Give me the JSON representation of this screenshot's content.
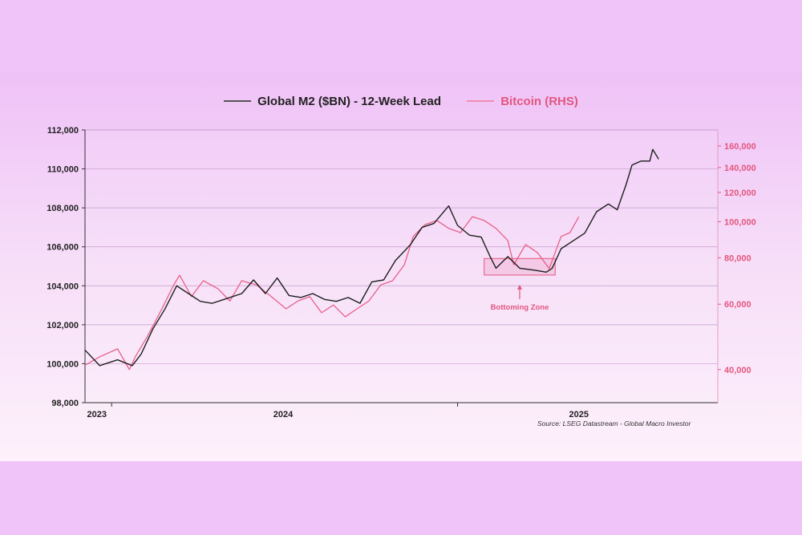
{
  "chart_data": {
    "type": "line",
    "title": "",
    "legend": [
      {
        "name": "Global M2 ($BN) - 12-Week Lead",
        "color": "#2b2b2b"
      },
      {
        "name": "Bitcoin (RHS)",
        "color": "#e2577f"
      }
    ],
    "legend_placement": "top-center",
    "source": "Source: LSEG Datastream - Global Macro Investor",
    "xlim": [
      2023.33,
      2025.47
    ],
    "x_tick_labels": [
      {
        "label": "2023",
        "at": 2023.37
      },
      {
        "label": "2024",
        "at": 2024.0
      },
      {
        "label": "2025",
        "at": 2025.0
      }
    ],
    "x_tick_marks": [
      2023.42,
      2024.59
    ],
    "left_axis": {
      "ylim": [
        98000,
        112000
      ],
      "ticks": [
        "98,000",
        "100,000",
        "102,000",
        "104,000",
        "106,000",
        "108,000",
        "110,000",
        "112,000"
      ],
      "tick_values": [
        98000,
        100000,
        102000,
        104000,
        106000,
        108000,
        110000,
        112000
      ]
    },
    "right_axis": {
      "scale": "log",
      "ticks": [
        "40,000",
        "60,000",
        "80,000",
        "100,000",
        "120,000",
        "140,000",
        "160,000"
      ],
      "tick_values": [
        40000,
        60000,
        80000,
        100000,
        120000,
        140000,
        160000
      ],
      "color": "#e2577f"
    },
    "grid": true,
    "series": [
      {
        "name": "Global M2 ($BN) - 12-Week Lead",
        "axis": "left",
        "x": [
          2023.33,
          2023.38,
          2023.44,
          2023.49,
          2023.52,
          2023.56,
          2023.6,
          2023.64,
          2023.68,
          2023.72,
          2023.76,
          2023.8,
          2023.86,
          2023.9,
          2023.94,
          2023.98,
          2024.02,
          2024.06,
          2024.1,
          2024.14,
          2024.18,
          2024.22,
          2024.26,
          2024.3,
          2024.34,
          2024.38,
          2024.43,
          2024.47,
          2024.51,
          2024.56,
          2024.59,
          2024.63,
          2024.67,
          2024.7,
          2024.72,
          2024.76,
          2024.8,
          2024.85,
          2024.89,
          2024.91,
          2024.94,
          2024.98,
          2025.02,
          2025.06,
          2025.1,
          2025.13,
          2025.16,
          2025.18,
          2025.21,
          2025.24,
          2025.25,
          2025.27
        ],
        "values": [
          100700,
          99900,
          100200,
          99900,
          100500,
          101800,
          102800,
          104000,
          103600,
          103200,
          103100,
          103300,
          103600,
          104300,
          103600,
          104400,
          103500,
          103400,
          103600,
          103300,
          103200,
          103400,
          103100,
          104200,
          104300,
          105300,
          106100,
          107000,
          107200,
          108100,
          107100,
          106600,
          106500,
          105500,
          104900,
          105500,
          104900,
          104800,
          104700,
          104900,
          105900,
          106300,
          106700,
          107800,
          108200,
          107900,
          109200,
          110200,
          110400,
          110400,
          111000,
          110500
        ]
      },
      {
        "name": "Bitcoin (RHS)",
        "axis": "right",
        "x": [
          2023.33,
          2023.38,
          2023.44,
          2023.48,
          2023.5,
          2023.54,
          2023.59,
          2023.63,
          2023.65,
          2023.69,
          2023.73,
          2023.78,
          2023.82,
          2023.86,
          2023.91,
          2023.96,
          2024.01,
          2024.05,
          2024.09,
          2024.13,
          2024.17,
          2024.21,
          2024.25,
          2024.29,
          2024.33,
          2024.37,
          2024.41,
          2024.44,
          2024.48,
          2024.52,
          2024.56,
          2024.6,
          2024.64,
          2024.68,
          2024.72,
          2024.76,
          2024.78,
          2024.82,
          2024.86,
          2024.9,
          2024.94,
          2024.97,
          2025.0
        ],
        "values": [
          41100,
          43300,
          45500,
          40000,
          43300,
          49000,
          58300,
          67600,
          71800,
          62900,
          69400,
          66000,
          61200,
          69400,
          67600,
          62900,
          58300,
          61200,
          62900,
          56900,
          59700,
          55500,
          58300,
          61200,
          67600,
          69400,
          76600,
          91300,
          98300,
          100800,
          96000,
          93500,
          103200,
          100800,
          96000,
          89000,
          76600,
          86800,
          82600,
          74800,
          91300,
          93500,
          103200
        ]
      }
    ],
    "annotations": [
      {
        "text": "Bottoming Zone",
        "x_range": [
          2024.68,
          2024.92
        ],
        "y_range": [
          104550,
          105400
        ],
        "color": "#e2577f"
      }
    ]
  }
}
